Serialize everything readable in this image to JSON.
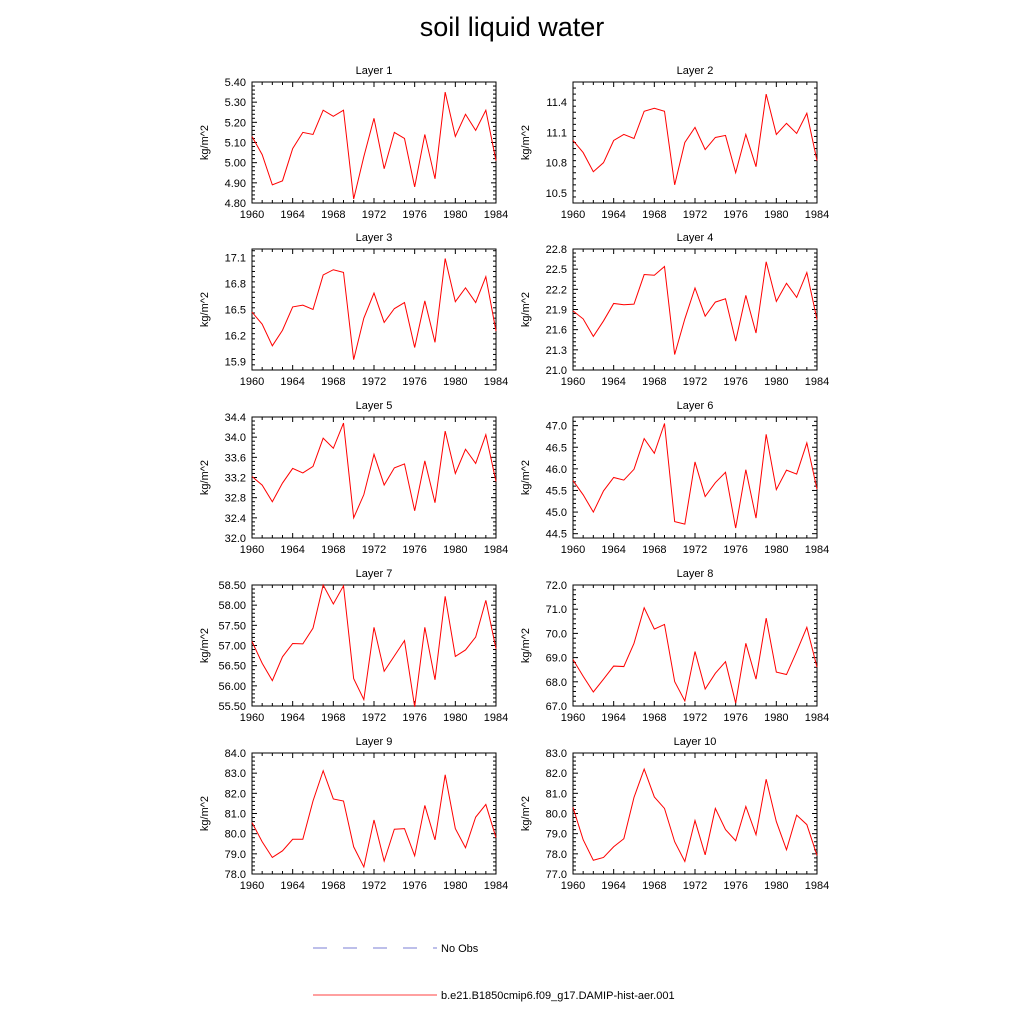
{
  "title": "soil liquid water",
  "legend": {
    "entries": [
      {
        "label": "No Obs",
        "style": "dashed",
        "color": "#7b7fd6"
      },
      {
        "label": "b.e21.B1850cmip6.f09_g17.DAMIP-hist-aer.001",
        "style": "solid",
        "color": "#ff4040"
      }
    ]
  },
  "chart_data": [
    {
      "type": "line",
      "title": "Layer 1",
      "ylabel": "kg/m^2",
      "xlim": [
        1960,
        1984
      ],
      "xticks": [
        1960,
        1964,
        1968,
        1972,
        1976,
        1980,
        1984
      ],
      "ylim": [
        4.8,
        5.4
      ],
      "yticks": [
        4.8,
        4.9,
        5.0,
        5.1,
        5.2,
        5.3,
        5.4
      ],
      "ydecimals": 2,
      "x": [
        1960,
        1961,
        1962,
        1963,
        1964,
        1965,
        1966,
        1967,
        1968,
        1969,
        1970,
        1971,
        1972,
        1973,
        1974,
        1975,
        1976,
        1977,
        1978,
        1979,
        1980,
        1981,
        1982,
        1983,
        1984
      ],
      "series": [
        {
          "name": "b.e21.B1850cmip6.f09_g17.DAMIP-hist-aer.001",
          "color": "#ff0000",
          "values": [
            5.13,
            5.04,
            4.89,
            4.91,
            5.07,
            5.15,
            5.14,
            5.26,
            5.23,
            5.26,
            4.82,
            5.03,
            5.22,
            4.97,
            5.15,
            5.12,
            4.88,
            5.14,
            4.92,
            5.35,
            5.13,
            5.24,
            5.16,
            5.26,
            5.01
          ]
        }
      ]
    },
    {
      "type": "line",
      "title": "Layer 2",
      "ylabel": "kg/m^2",
      "xlim": [
        1960,
        1984
      ],
      "xticks": [
        1960,
        1964,
        1968,
        1972,
        1976,
        1980,
        1984
      ],
      "ylim": [
        10.4,
        11.6
      ],
      "yticks": [
        10.5,
        10.8,
        11.1,
        11.4
      ],
      "ydecimals": 1,
      "x": [
        1960,
        1961,
        1962,
        1963,
        1964,
        1965,
        1966,
        1967,
        1968,
        1969,
        1970,
        1971,
        1972,
        1973,
        1974,
        1975,
        1976,
        1977,
        1978,
        1979,
        1980,
        1981,
        1982,
        1983,
        1984
      ],
      "series": [
        {
          "name": "b.e21.B1850cmip6.f09_g17.DAMIP-hist-aer.001",
          "color": "#ff0000",
          "values": [
            11.02,
            10.9,
            10.71,
            10.8,
            11.02,
            11.08,
            11.04,
            11.31,
            11.34,
            11.31,
            10.58,
            11.0,
            11.15,
            10.93,
            11.05,
            11.07,
            10.7,
            11.08,
            10.76,
            11.48,
            11.08,
            11.19,
            11.09,
            11.29,
            10.82
          ]
        }
      ]
    },
    {
      "type": "line",
      "title": "Layer 3",
      "ylabel": "kg/m^2",
      "xlim": [
        1960,
        1984
      ],
      "xticks": [
        1960,
        1964,
        1968,
        1972,
        1976,
        1980,
        1984
      ],
      "ylim": [
        15.8,
        17.2
      ],
      "yticks": [
        15.9,
        16.2,
        16.5,
        16.8,
        17.1
      ],
      "ydecimals": 1,
      "x": [
        1960,
        1961,
        1962,
        1963,
        1964,
        1965,
        1966,
        1967,
        1968,
        1969,
        1970,
        1971,
        1972,
        1973,
        1974,
        1975,
        1976,
        1977,
        1978,
        1979,
        1980,
        1981,
        1982,
        1983,
        1984
      ],
      "series": [
        {
          "name": "b.e21.B1850cmip6.f09_g17.DAMIP-hist-aer.001",
          "color": "#ff0000",
          "values": [
            16.47,
            16.33,
            16.08,
            16.26,
            16.53,
            16.55,
            16.5,
            16.9,
            16.96,
            16.93,
            15.92,
            16.4,
            16.69,
            16.35,
            16.51,
            16.58,
            16.06,
            16.6,
            16.12,
            17.09,
            16.59,
            16.75,
            16.58,
            16.88,
            16.25
          ]
        }
      ]
    },
    {
      "type": "line",
      "title": "Layer 4",
      "ylabel": "kg/m^2",
      "xlim": [
        1960,
        1984
      ],
      "xticks": [
        1960,
        1964,
        1968,
        1972,
        1976,
        1980,
        1984
      ],
      "ylim": [
        21.0,
        22.8
      ],
      "yticks": [
        21.0,
        21.3,
        21.6,
        21.9,
        22.2,
        22.5,
        22.8
      ],
      "ydecimals": 1,
      "x": [
        1960,
        1961,
        1962,
        1963,
        1964,
        1965,
        1966,
        1967,
        1968,
        1969,
        1970,
        1971,
        1972,
        1973,
        1974,
        1975,
        1976,
        1977,
        1978,
        1979,
        1980,
        1981,
        1982,
        1983,
        1984
      ],
      "series": [
        {
          "name": "b.e21.B1850cmip6.f09_g17.DAMIP-hist-aer.001",
          "color": "#ff0000",
          "values": [
            21.88,
            21.76,
            21.5,
            21.73,
            21.99,
            21.97,
            21.98,
            22.42,
            22.41,
            22.54,
            21.23,
            21.76,
            22.22,
            21.8,
            22.01,
            22.06,
            21.43,
            22.11,
            21.55,
            22.61,
            22.02,
            22.29,
            22.08,
            22.45,
            21.75
          ]
        }
      ]
    },
    {
      "type": "line",
      "title": "Layer 5",
      "ylabel": "kg/m^2",
      "xlim": [
        1960,
        1984
      ],
      "xticks": [
        1960,
        1964,
        1968,
        1972,
        1976,
        1980,
        1984
      ],
      "ylim": [
        32.0,
        34.4
      ],
      "yticks": [
        32.0,
        32.4,
        32.8,
        33.2,
        33.6,
        34.0,
        34.4
      ],
      "ydecimals": 1,
      "x": [
        1960,
        1961,
        1962,
        1963,
        1964,
        1965,
        1966,
        1967,
        1968,
        1969,
        1970,
        1971,
        1972,
        1973,
        1974,
        1975,
        1976,
        1977,
        1978,
        1979,
        1980,
        1981,
        1982,
        1983,
        1984
      ],
      "series": [
        {
          "name": "b.e21.B1850cmip6.f09_g17.DAMIP-hist-aer.001",
          "color": "#ff0000",
          "values": [
            33.22,
            33.05,
            32.72,
            33.09,
            33.38,
            33.29,
            33.42,
            33.98,
            33.78,
            34.28,
            32.4,
            32.86,
            33.66,
            33.05,
            33.39,
            33.47,
            32.54,
            33.53,
            32.7,
            34.12,
            33.28,
            33.76,
            33.48,
            34.05,
            33.12
          ]
        }
      ]
    },
    {
      "type": "line",
      "title": "Layer 6",
      "ylabel": "kg/m^2",
      "xlim": [
        1960,
        1984
      ],
      "xticks": [
        1960,
        1964,
        1968,
        1972,
        1976,
        1980,
        1984
      ],
      "ylim": [
        44.4,
        47.2
      ],
      "yticks": [
        44.5,
        45.0,
        45.5,
        46.0,
        46.5,
        47.0
      ],
      "ydecimals": 1,
      "x": [
        1960,
        1961,
        1962,
        1963,
        1964,
        1965,
        1966,
        1967,
        1968,
        1969,
        1970,
        1971,
        1972,
        1973,
        1974,
        1975,
        1976,
        1977,
        1978,
        1979,
        1980,
        1981,
        1982,
        1983,
        1984
      ],
      "series": [
        {
          "name": "b.e21.B1850cmip6.f09_g17.DAMIP-hist-aer.001",
          "color": "#ff0000",
          "values": [
            45.73,
            45.4,
            45.0,
            45.49,
            45.8,
            45.74,
            45.99,
            46.7,
            46.36,
            47.05,
            44.78,
            44.72,
            46.16,
            45.36,
            45.68,
            45.92,
            44.63,
            45.98,
            44.86,
            46.8,
            45.52,
            45.97,
            45.88,
            46.6,
            45.53
          ]
        }
      ]
    },
    {
      "type": "line",
      "title": "Layer 7",
      "ylabel": "kg/m^2",
      "xlim": [
        1960,
        1984
      ],
      "xticks": [
        1960,
        1964,
        1968,
        1972,
        1976,
        1980,
        1984
      ],
      "ylim": [
        55.5,
        58.5
      ],
      "yticks": [
        55.5,
        56.0,
        56.5,
        57.0,
        57.5,
        58.0,
        58.5
      ],
      "ydecimals": 2,
      "x": [
        1960,
        1961,
        1962,
        1963,
        1964,
        1965,
        1966,
        1967,
        1968,
        1969,
        1970,
        1971,
        1972,
        1973,
        1974,
        1975,
        1976,
        1977,
        1978,
        1979,
        1980,
        1981,
        1982,
        1983,
        1984
      ],
      "series": [
        {
          "name": "b.e21.B1850cmip6.f09_g17.DAMIP-hist-aer.001",
          "color": "#ff0000",
          "values": [
            57.1,
            56.56,
            56.13,
            56.72,
            57.05,
            57.04,
            57.43,
            58.5,
            58.03,
            58.48,
            56.18,
            55.66,
            57.45,
            56.36,
            56.74,
            57.12,
            55.48,
            57.45,
            56.15,
            58.22,
            56.73,
            56.89,
            57.21,
            58.12,
            56.92
          ]
        }
      ]
    },
    {
      "type": "line",
      "title": "Layer 8",
      "ylabel": "kg/m^2",
      "xlim": [
        1960,
        1984
      ],
      "xticks": [
        1960,
        1964,
        1968,
        1972,
        1976,
        1980,
        1984
      ],
      "ylim": [
        67.0,
        72.0
      ],
      "yticks": [
        67.0,
        68.0,
        69.0,
        70.0,
        71.0,
        72.0
      ],
      "ydecimals": 1,
      "x": [
        1960,
        1961,
        1962,
        1963,
        1964,
        1965,
        1966,
        1967,
        1968,
        1969,
        1970,
        1971,
        1972,
        1973,
        1974,
        1975,
        1976,
        1977,
        1978,
        1979,
        1980,
        1981,
        1982,
        1983,
        1984
      ],
      "series": [
        {
          "name": "b.e21.B1850cmip6.f09_g17.DAMIP-hist-aer.001",
          "color": "#ff0000",
          "values": [
            68.92,
            68.23,
            67.58,
            68.11,
            68.65,
            68.63,
            69.59,
            71.06,
            70.18,
            70.37,
            68.01,
            67.21,
            69.25,
            67.7,
            68.35,
            68.83,
            67.12,
            69.59,
            68.11,
            70.63,
            68.4,
            68.3,
            69.25,
            70.25,
            68.6
          ]
        }
      ]
    },
    {
      "type": "line",
      "title": "Layer 9",
      "ylabel": "kg/m^2",
      "xlim": [
        1960,
        1984
      ],
      "xticks": [
        1960,
        1964,
        1968,
        1972,
        1976,
        1980,
        1984
      ],
      "ylim": [
        78.0,
        84.0
      ],
      "yticks": [
        78.0,
        79.0,
        80.0,
        81.0,
        82.0,
        83.0,
        84.0
      ],
      "ydecimals": 1,
      "x": [
        1960,
        1961,
        1962,
        1963,
        1964,
        1965,
        1966,
        1967,
        1968,
        1969,
        1970,
        1971,
        1972,
        1973,
        1974,
        1975,
        1976,
        1977,
        1978,
        1979,
        1980,
        1981,
        1982,
        1983,
        1984
      ],
      "series": [
        {
          "name": "b.e21.B1850cmip6.f09_g17.DAMIP-hist-aer.001",
          "color": "#ff0000",
          "values": [
            80.55,
            79.6,
            78.82,
            79.15,
            79.72,
            79.72,
            81.62,
            83.12,
            81.72,
            81.62,
            79.35,
            78.35,
            80.68,
            78.64,
            80.22,
            80.25,
            78.9,
            81.4,
            79.69,
            82.92,
            80.25,
            79.3,
            80.82,
            81.45,
            79.8
          ]
        }
      ]
    },
    {
      "type": "line",
      "title": "Layer 10",
      "ylabel": "kg/m^2",
      "xlim": [
        1960,
        1984
      ],
      "xticks": [
        1960,
        1964,
        1968,
        1972,
        1976,
        1980,
        1984
      ],
      "ylim": [
        77.0,
        83.0
      ],
      "yticks": [
        77.0,
        78.0,
        79.0,
        80.0,
        81.0,
        82.0,
        83.0
      ],
      "ydecimals": 1,
      "x": [
        1960,
        1961,
        1962,
        1963,
        1964,
        1965,
        1966,
        1967,
        1968,
        1969,
        1970,
        1971,
        1972,
        1973,
        1974,
        1975,
        1976,
        1977,
        1978,
        1979,
        1980,
        1981,
        1982,
        1983,
        1984
      ],
      "series": [
        {
          "name": "b.e21.B1850cmip6.f09_g17.DAMIP-hist-aer.001",
          "color": "#ff0000",
          "values": [
            80.3,
            78.7,
            77.68,
            77.82,
            78.35,
            78.75,
            80.8,
            82.2,
            80.82,
            80.25,
            78.6,
            77.62,
            79.65,
            77.95,
            80.25,
            79.2,
            78.65,
            80.35,
            78.95,
            81.7,
            79.6,
            78.2,
            79.92,
            79.45,
            77.92
          ]
        }
      ]
    }
  ]
}
